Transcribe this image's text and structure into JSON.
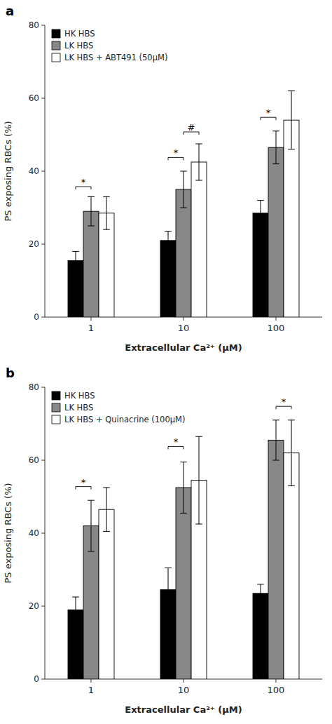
{
  "chart_data": [
    {
      "type": "bar",
      "title": "a",
      "categories": [
        "1",
        "10",
        "100"
      ],
      "series": [
        {
          "name": "HK HBS",
          "color": "#000000",
          "values": [
            15.5,
            21.0,
            28.5
          ],
          "errors": [
            2.5,
            2.5,
            3.5
          ]
        },
        {
          "name": "LK HBS",
          "color": "#888888",
          "values": [
            29.0,
            35.0,
            46.5
          ],
          "errors": [
            4.0,
            5.0,
            4.5
          ]
        },
        {
          "name": "LK HBS + ABT491 (50μM)",
          "color": "#ffffff",
          "values": [
            28.5,
            42.5,
            54.0
          ],
          "errors": [
            4.5,
            5.0,
            8.0
          ]
        }
      ],
      "xlabel": "Extracellular Ca²⁺ (μM)",
      "ylabel": "PS exposing RBCs (%)",
      "ylim": [
        0,
        80
      ],
      "yticks": [
        0,
        20,
        40,
        60,
        80
      ],
      "grid": false,
      "legend": "upper left",
      "annotations": [
        {
          "label": "*",
          "y": 35,
          "from": [
            "1",
            "HK HBS"
          ],
          "to": [
            "1",
            "LK HBS"
          ]
        },
        {
          "label": "*",
          "y": 43,
          "from": [
            "10",
            "HK HBS"
          ],
          "to": [
            "10",
            "LK HBS"
          ]
        },
        {
          "label": "#",
          "y": 50,
          "from": [
            "10",
            "LK HBS"
          ],
          "to": [
            "10",
            "LK HBS + ABT491 (50μM)"
          ]
        },
        {
          "label": "*",
          "y": 54,
          "from": [
            "100",
            "HK HBS"
          ],
          "to": [
            "100",
            "LK HBS"
          ]
        }
      ]
    },
    {
      "type": "bar",
      "title": "b",
      "categories": [
        "1",
        "10",
        "100"
      ],
      "series": [
        {
          "name": "HK HBS",
          "color": "#000000",
          "values": [
            19.0,
            24.5,
            23.5
          ],
          "errors": [
            3.5,
            6.0,
            2.5
          ]
        },
        {
          "name": "LK HBS",
          "color": "#888888",
          "values": [
            42.0,
            52.5,
            65.5
          ],
          "errors": [
            7.0,
            7.0,
            5.5
          ]
        },
        {
          "name": "LK HBS + Quinacrine (100μM)",
          "color": "#ffffff",
          "values": [
            46.5,
            54.5,
            62.0
          ],
          "errors": [
            6.0,
            12.0,
            9.0
          ]
        }
      ],
      "xlabel": "Extracellular Ca²⁺ (μM)",
      "ylabel": "PS exposing RBCs (%)",
      "ylim": [
        0,
        80
      ],
      "yticks": [
        0,
        20,
        40,
        60,
        80
      ],
      "grid": false,
      "legend": "upper left",
      "annotations": [
        {
          "label": "*",
          "y": 52,
          "from": [
            "1",
            "HK HBS"
          ],
          "to": [
            "1",
            "LK HBS"
          ]
        },
        {
          "label": "*",
          "y": 63,
          "from": [
            "10",
            "HK HBS"
          ],
          "to": [
            "10",
            "LK HBS"
          ]
        },
        {
          "label": "*",
          "y": 74,
          "from": [
            "100",
            "LK HBS"
          ],
          "to": [
            "100",
            "LK HBS + Quinacrine (100μM)"
          ]
        }
      ]
    }
  ]
}
